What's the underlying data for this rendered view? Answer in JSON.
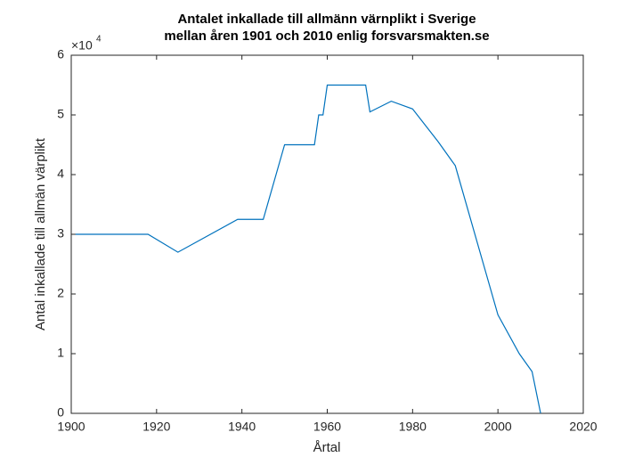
{
  "chart_data": {
    "type": "line",
    "title": [
      "Antalet inkallade till allmänn värnplikt i Sverige",
      "mellan åren 1901 och 2010 enlig forsvarsmakten.se"
    ],
    "xlabel": "Årtal",
    "ylabel": "Antal inkallade till allmän värplikt",
    "y_multiplier_base": "×10",
    "y_multiplier_exponent": "4",
    "x": [
      1901,
      1918,
      1925,
      1939,
      1945,
      1950,
      1957,
      1958,
      1959,
      1960,
      1969,
      1970,
      1975,
      1980,
      1986,
      1990,
      2000,
      2005,
      2008,
      2010
    ],
    "series": [
      {
        "color": "#0072bd",
        "values": [
          30000,
          30000,
          27000,
          32500,
          32500,
          45000,
          45000,
          50000,
          50000,
          55000,
          55000,
          50500,
          52300,
          51000,
          45500,
          41500,
          16500,
          10000,
          7000,
          0
        ]
      }
    ],
    "xlim": [
      1900,
      2020
    ],
    "xticks": [
      1900,
      1920,
      1940,
      1960,
      1980,
      2000,
      2020
    ],
    "ylim": [
      0,
      60000
    ],
    "yticks": [
      {
        "value": 0,
        "label": "0"
      },
      {
        "value": 10000,
        "label": "1"
      },
      {
        "value": 20000,
        "label": "2"
      },
      {
        "value": 30000,
        "label": "3"
      },
      {
        "value": 40000,
        "label": "4"
      },
      {
        "value": 50000,
        "label": "5"
      },
      {
        "value": 60000,
        "label": "6"
      }
    ]
  }
}
